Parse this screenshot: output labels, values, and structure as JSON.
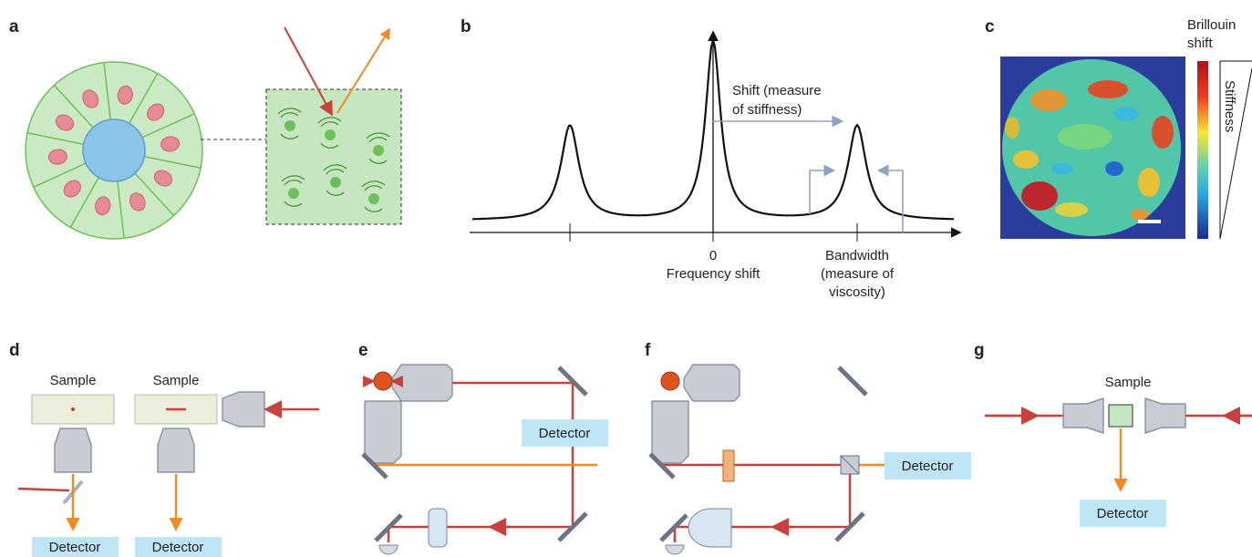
{
  "a": {
    "label": "a"
  },
  "b": {
    "label": "b",
    "shift_annotation": [
      "Shift (measure",
      "of stiffness)"
    ],
    "zero_tick": "0",
    "x_axis_title": "Frequency shift",
    "bandwidth_annotation": [
      "Bandwidth",
      "(measure of",
      "viscosity)"
    ]
  },
  "c": {
    "label": "c",
    "colorbar_title": [
      "Brillouin",
      "shift"
    ],
    "stiffness_label": "Stiffness"
  },
  "d": {
    "label": "d",
    "sample_labels": [
      "Sample",
      "Sample"
    ],
    "detector_labels": [
      "Detector",
      "Detector"
    ]
  },
  "e": {
    "label": "e",
    "detector_label": "Detector"
  },
  "f": {
    "label": "f",
    "detector_label": "Detector"
  },
  "g": {
    "label": "g",
    "sample_label": "Sample",
    "detector_label": "Detector"
  }
}
